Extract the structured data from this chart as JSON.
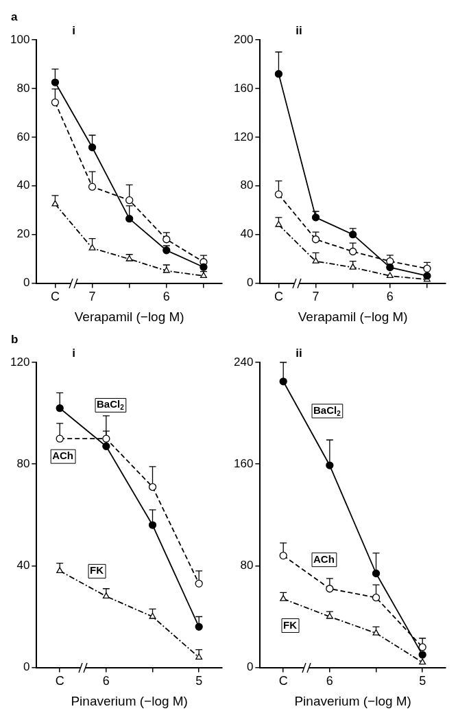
{
  "chart_data": [
    {
      "type": "line",
      "title": "i",
      "annotations": [
        "a"
      ],
      "xlabel": "Verapamil (−log M)",
      "categories": [
        "C",
        "7",
        null,
        "6",
        null
      ],
      "ylim": [
        0,
        100
      ],
      "yticks": [
        0,
        20,
        40,
        60,
        80,
        100
      ],
      "grid": false,
      "legend": false,
      "series": [
        {
          "color": "#000000",
          "marker": "circle",
          "line_style": "solid",
          "values": [
            82.5,
            55.8,
            26.5,
            13.5,
            6.6
          ],
          "errors": [
            [
              82.5,
              88
            ],
            [
              55.8,
              60.8
            ],
            [
              26.5,
              31.8
            ],
            [
              13.5,
              15.4
            ],
            null
          ]
        },
        {
          "color": "#000000",
          "marker": "circle",
          "line_style": "dashed",
          "values": [
            74.3,
            39.6,
            34.1,
            18,
            8.7
          ],
          "errors": [
            [
              74.3,
              79.8
            ],
            [
              39.6,
              45.8
            ],
            [
              34.1,
              40.4
            ],
            [
              18,
              20.8
            ],
            [
              8.7,
              11.4
            ]
          ]
        },
        {
          "color": "#000000",
          "marker": "triangle",
          "line_style": "dashdot",
          "values": [
            32.5,
            14.4,
            9.9,
            5.1,
            3
          ],
          "errors": [
            [
              32.5,
              36
            ],
            [
              14.4,
              18.3
            ],
            [
              9.9,
              11.8
            ],
            [
              5.1,
              7.5
            ],
            [
              3,
              4.8
            ]
          ]
        }
      ]
    },
    {
      "type": "line",
      "title": "ii",
      "xlabel": "Verapamil (−log M)",
      "categories": [
        "C",
        "7",
        null,
        "6",
        null
      ],
      "ylim": [
        0,
        200
      ],
      "yticks": [
        0,
        40,
        80,
        120,
        160,
        200
      ],
      "grid": false,
      "legend": false,
      "series": [
        {
          "color": "#000000",
          "marker": "circle",
          "line_style": "solid",
          "values": [
            172,
            54,
            40,
            13,
            6
          ],
          "errors": [
            [
              172,
              190
            ],
            [
              54,
              59
            ],
            [
              40,
              45
            ],
            null,
            null
          ]
        },
        {
          "color": "#000000",
          "marker": "circle",
          "line_style": "dashed",
          "values": [
            73,
            36,
            26,
            18,
            12
          ],
          "errors": [
            [
              73,
              84
            ],
            [
              36,
              42
            ],
            [
              26,
              33
            ],
            [
              18,
              23
            ],
            [
              12,
              17
            ]
          ]
        },
        {
          "color": "#000000",
          "marker": "triangle",
          "line_style": "dashdot",
          "values": [
            48,
            18,
            13,
            6,
            3
          ],
          "errors": [
            [
              48,
              54
            ],
            [
              18,
              25
            ],
            [
              13,
              18
            ],
            null,
            null
          ]
        }
      ]
    },
    {
      "type": "line",
      "title": "i",
      "annotations": [
        "b"
      ],
      "xlabel": "Pinaverium (−log M)",
      "categories": [
        "C",
        "6",
        null,
        "5"
      ],
      "ylim": [
        0,
        120
      ],
      "yticks": [
        0,
        40,
        80,
        120
      ],
      "grid": false,
      "legend": false,
      "series": [
        {
          "name": "BaCl$_{2}$",
          "color": "#000000",
          "marker": "circle",
          "line_style": "solid",
          "values": [
            102,
            87,
            56,
            16
          ],
          "errors": [
            [
              102,
              108
            ],
            [
              87,
              93
            ],
            [
              56,
              62
            ],
            [
              16,
              20
            ]
          ]
        },
        {
          "name": "ACh",
          "color": "#000000",
          "marker": "circle",
          "line_style": "dashed",
          "values": [
            90,
            90,
            71,
            33
          ],
          "errors": [
            [
              90,
              96
            ],
            [
              90,
              99
            ],
            [
              71,
              79
            ],
            [
              33,
              38
            ]
          ]
        },
        {
          "name": "FK",
          "color": "#000000",
          "marker": "triangle",
          "line_style": "dashdot",
          "values": [
            38,
            28,
            20,
            4
          ],
          "errors": [
            [
              38,
              41
            ],
            [
              28,
              31
            ],
            [
              20,
              23
            ],
            [
              4,
              7
            ]
          ]
        }
      ]
    },
    {
      "type": "line",
      "title": "ii",
      "xlabel": "Pinaverium (−log M)",
      "categories": [
        "C",
        "6",
        null,
        "5"
      ],
      "ylim": [
        0,
        240
      ],
      "yticks": [
        0,
        80,
        160,
        240
      ],
      "grid": false,
      "legend": false,
      "series": [
        {
          "name": "BaCl$_{2}$",
          "color": "#000000",
          "marker": "circle",
          "line_style": "solid",
          "values": [
            225,
            159,
            74,
            10
          ],
          "errors": [
            [
              225,
              240
            ],
            [
              159,
              179
            ],
            [
              74,
              90
            ],
            null
          ]
        },
        {
          "name": "ACh",
          "color": "#000000",
          "marker": "circle",
          "line_style": "dashed",
          "values": [
            88,
            62,
            55,
            16
          ],
          "errors": [
            [
              88,
              98
            ],
            [
              62,
              70
            ],
            [
              55,
              65
            ],
            [
              16,
              23
            ]
          ]
        },
        {
          "name": "FK",
          "color": "#000000",
          "marker": "triangle",
          "line_style": "dashdot",
          "values": [
            54,
            40,
            27,
            4
          ],
          "errors": [
            [
              54,
              59
            ],
            [
              40,
              44
            ],
            [
              27,
              32
            ],
            null
          ]
        }
      ]
    }
  ]
}
